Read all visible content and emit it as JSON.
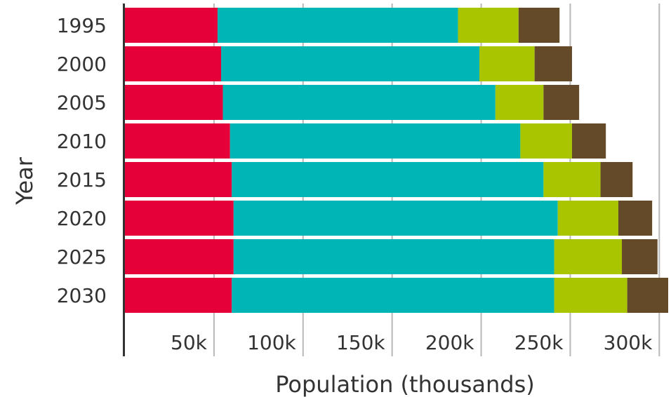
{
  "chart_data": {
    "type": "bar",
    "orientation": "horizontal",
    "stacked": true,
    "categories": [
      "1995",
      "2000",
      "2005",
      "2010",
      "2015",
      "2020",
      "2025",
      "2030"
    ],
    "series": [
      {
        "values": [
          52,
          54,
          55,
          59,
          60,
          61,
          61,
          60
        ]
      },
      {
        "values": [
          135,
          145,
          153,
          163,
          175,
          182,
          180,
          181
        ]
      },
      {
        "values": [
          34,
          31,
          27,
          29,
          32,
          34,
          38,
          41
        ]
      },
      {
        "values": [
          23,
          21,
          20,
          19,
          18,
          19,
          20,
          23
        ]
      }
    ],
    "colors": [
      "#e6003a",
      "#00b5b5",
      "#a9c500",
      "#654a2a"
    ],
    "xlabel": "Population (thousands)",
    "ylabel": "Year",
    "xlim": [
      0,
      305
    ],
    "xticks": [
      50,
      100,
      150,
      200,
      250,
      300
    ],
    "xtick_labels": [
      "50k",
      "100k",
      "150k",
      "200k",
      "250k",
      "300k"
    ],
    "grid": "vertical",
    "legend": "none"
  }
}
